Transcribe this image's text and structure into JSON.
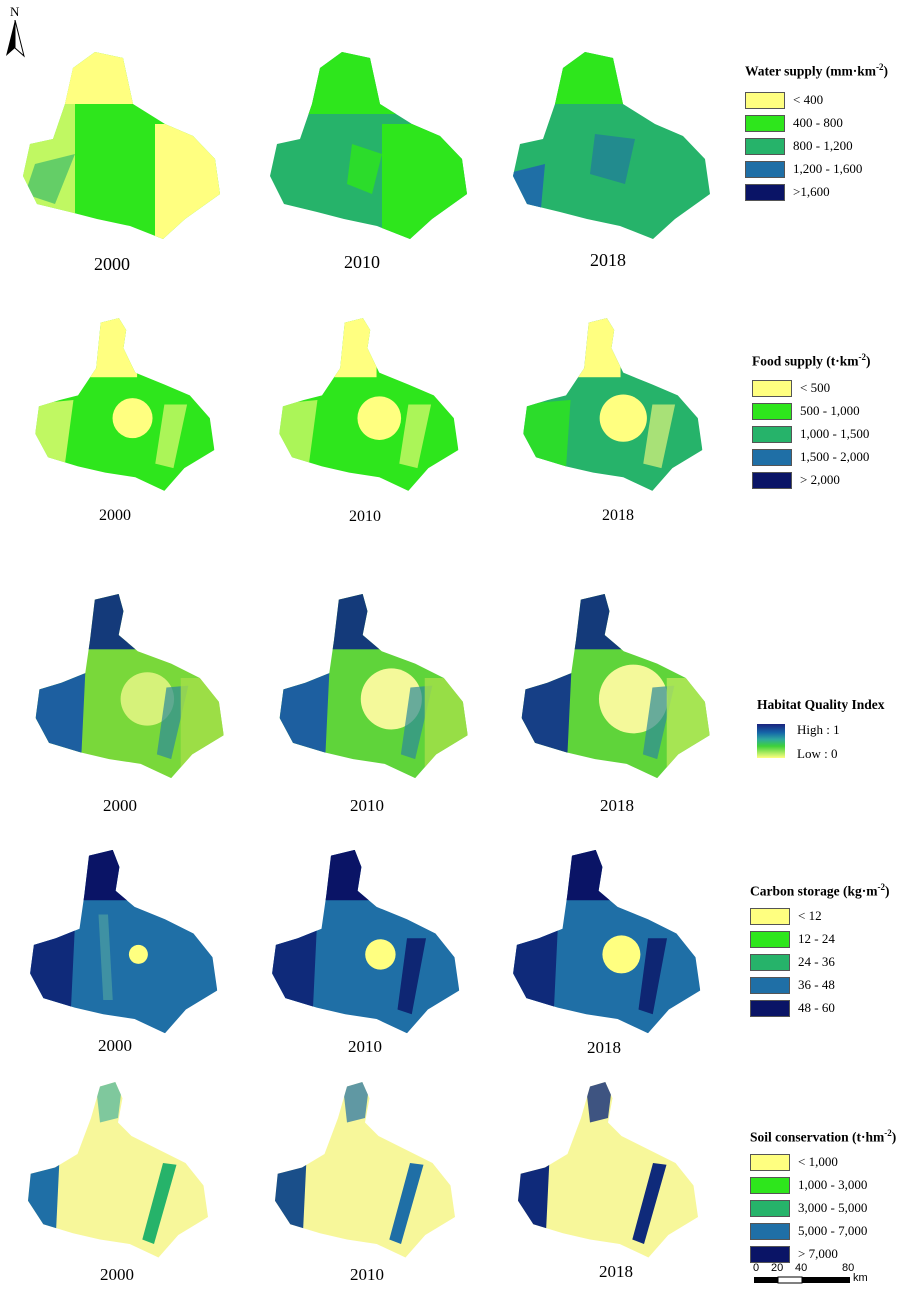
{
  "north_arrow": {
    "label": "N"
  },
  "rows": [
    {
      "id": "water",
      "years": [
        "2000",
        "2010",
        "2018"
      ],
      "legend": {
        "title": "Water supply (mm·km",
        "title_sup": "-2",
        "title_end": ")",
        "classes": [
          {
            "label": "< 400",
            "color": "#ffff80"
          },
          {
            "label": "400 - 800",
            "color": "#2ee61c"
          },
          {
            "label": "800 - 1,200",
            "color": "#26b36a"
          },
          {
            "label": "1,200 - 1,600",
            "color": "#1f6fa6"
          },
          {
            "label": ">1,600",
            "color": "#0a1466"
          }
        ]
      }
    },
    {
      "id": "food",
      "years": [
        "2000",
        "2010",
        "2018"
      ],
      "legend": {
        "title": "Food supply (t·km",
        "title_sup": "-2",
        "title_end": ")",
        "classes": [
          {
            "label": "< 500",
            "color": "#ffff80"
          },
          {
            "label": "500 - 1,000",
            "color": "#2ee61c"
          },
          {
            "label": "1,000 - 1,500",
            "color": "#26b36a"
          },
          {
            "label": "1,500 - 2,000",
            "color": "#1f6fa6"
          },
          {
            "label": "> 2,000",
            "color": "#0a1466"
          }
        ]
      }
    },
    {
      "id": "habitat",
      "years": [
        "2000",
        "2010",
        "2018"
      ],
      "legend": {
        "title": "Habitat Quality Index",
        "high_label": "High : 1",
        "low_label": "Low : 0"
      }
    },
    {
      "id": "carbon",
      "years": [
        "2000",
        "2010",
        "2018"
      ],
      "legend": {
        "title": "Carbon storage (kg·m",
        "title_sup": "-2",
        "title_end": ")",
        "classes": [
          {
            "label": "< 12",
            "color": "#ffff80"
          },
          {
            "label": "12 - 24",
            "color": "#2ee61c"
          },
          {
            "label": "24 - 36",
            "color": "#26b36a"
          },
          {
            "label": "36 - 48",
            "color": "#1f6fa6"
          },
          {
            "label": "48 - 60",
            "color": "#0a1466"
          }
        ]
      }
    },
    {
      "id": "soil",
      "years": [
        "2000",
        "2010",
        "2018"
      ],
      "legend": {
        "title": "Soil conservation (t·hm",
        "title_sup": "-2",
        "title_end": ")",
        "classes": [
          {
            "label": "< 1,000",
            "color": "#ffff80"
          },
          {
            "label": "1,000 - 3,000",
            "color": "#2ee61c"
          },
          {
            "label": "3,000 - 5,000",
            "color": "#26b36a"
          },
          {
            "label": "5,000 - 7,000",
            "color": "#1f6fa6"
          },
          {
            "label": "> 7,000",
            "color": "#0a1466"
          }
        ]
      }
    }
  ],
  "scalebar": {
    "ticks": [
      "0",
      "20",
      "40",
      "80"
    ],
    "unit": "km"
  }
}
